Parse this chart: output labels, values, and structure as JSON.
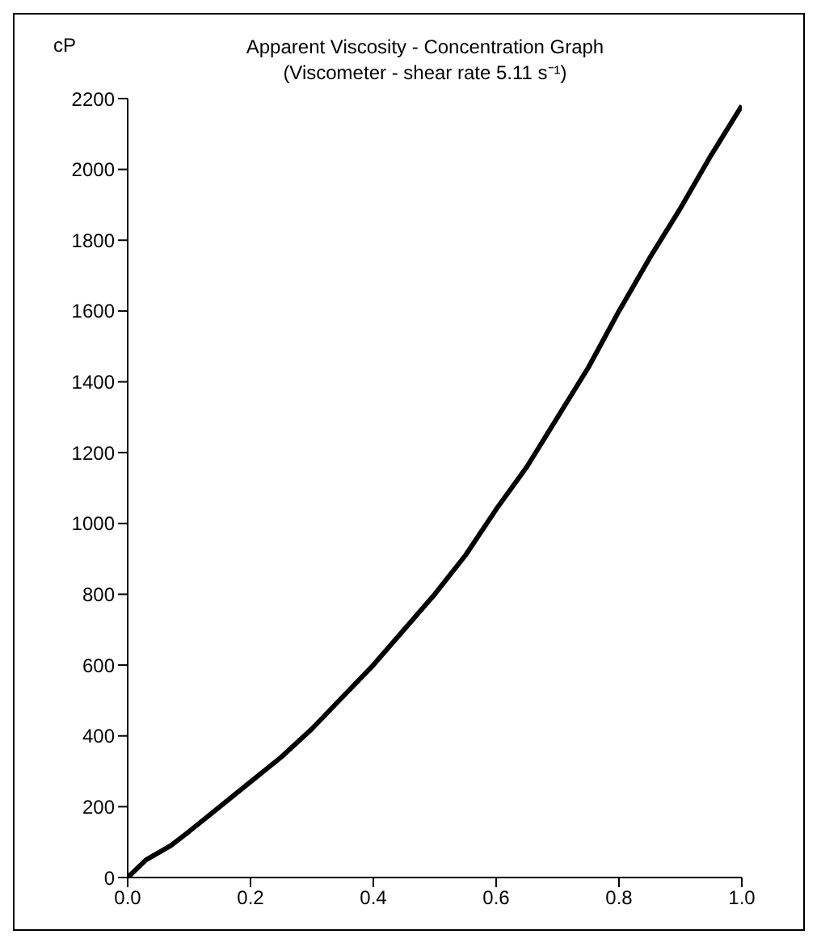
{
  "chart_data": {
    "type": "line",
    "title": "Apparent Viscosity - Concentration Graph",
    "subtitle": "(Viscometer - shear rate 5.11 s⁻¹)",
    "ylabel": "cP",
    "x": [
      0,
      0.03,
      0.07,
      0.1,
      0.15,
      0.2,
      0.25,
      0.3,
      0.35,
      0.4,
      0.45,
      0.5,
      0.55,
      0.6,
      0.65,
      0.7,
      0.75,
      0.8,
      0.85,
      0.9,
      0.95,
      1.0
    ],
    "series": [
      {
        "color": "#000000",
        "values": [
          0,
          50,
          90,
          130,
          200,
          270,
          340,
          420,
          510,
          600,
          700,
          800,
          910,
          1040,
          1160,
          1300,
          1440,
          1600,
          1750,
          1890,
          2040,
          2180
        ]
      }
    ],
    "xlim": [
      0,
      1
    ],
    "xticks": [
      {
        "value": 0,
        "label": "0.0"
      },
      {
        "value": 0.2,
        "label": "0.2"
      },
      {
        "value": 0.4,
        "label": "0.4"
      },
      {
        "value": 0.6,
        "label": "0.6"
      },
      {
        "value": 0.8,
        "label": "0.8"
      },
      {
        "value": 1,
        "label": "1.0"
      }
    ],
    "ylim": [
      0,
      2200
    ],
    "yticks": [
      0,
      200,
      400,
      600,
      800,
      1000,
      1200,
      1400,
      1600,
      1800,
      2000,
      2200
    ],
    "grid": false,
    "legend": false,
    "marker": "none",
    "line_style": "solid"
  }
}
